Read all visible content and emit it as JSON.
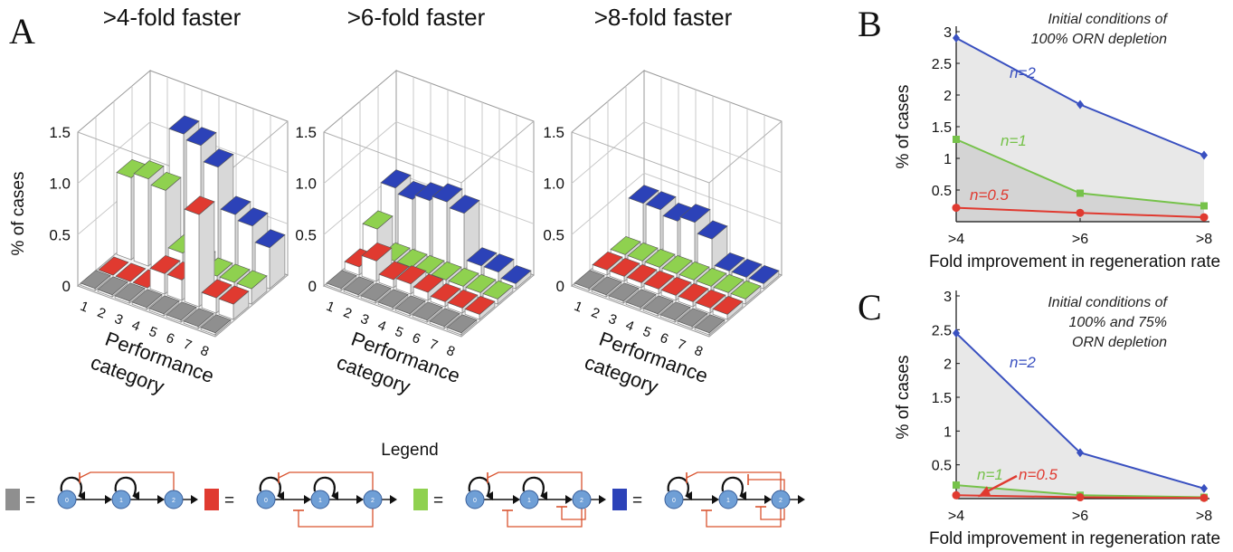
{
  "panels": {
    "A": "A",
    "B": "B",
    "C": "C"
  },
  "colors": {
    "gray": "#8f8f8f",
    "red": "#e03a30",
    "green": "#8fd14f",
    "blue": "#2c42b8",
    "line_blue": "#3950c0",
    "line_green": "#76c24a",
    "line_red": "#e03a30",
    "node": "#6f9fd6",
    "arrow_red": "#d9532f"
  },
  "panel_a": {
    "ylabel": "% of cases",
    "yticks": [
      "0",
      "0.5",
      "1.0",
      "1.5"
    ],
    "xlabel_line1": "Performance",
    "xlabel_line2": "category",
    "titles": [
      ">4-fold faster",
      ">6-fold faster",
      ">8-fold faster"
    ]
  },
  "legend": {
    "title": "Legend",
    "equals": "=",
    "node_labels": [
      "0",
      "1",
      "2"
    ]
  },
  "chart_data": [
    {
      "type": "bar3d",
      "title": ">4-fold faster",
      "xlabel": "Performance category",
      "ylabel": "% of cases",
      "zlim": [
        0,
        1.5
      ],
      "categories": [
        "1",
        "2",
        "3",
        "4",
        "5",
        "6",
        "7",
        "8"
      ],
      "series": [
        {
          "color": "gray",
          "values": [
            0.02,
            0.02,
            0.02,
            0.02,
            0.02,
            0.02,
            0.02,
            0.02
          ]
        },
        {
          "color": "red",
          "values": [
            0,
            0,
            0,
            0.2,
            0.2,
            0.9,
            0.15,
            0.15
          ]
        },
        {
          "color": "green",
          "values": [
            0.8,
            0.85,
            0.8,
            0.25,
            0.2,
            0.15,
            0.15,
            0.15
          ]
        },
        {
          "color": "blue",
          "values": [
            0.3,
            0.25,
            1.2,
            1.15,
            1.0,
            0.6,
            0.55,
            0.4
          ]
        }
      ]
    },
    {
      "type": "bar3d",
      "title": ">6-fold faster",
      "xlabel": "Performance category",
      "ylabel": "% of cases",
      "zlim": [
        0,
        1.5
      ],
      "categories": [
        "1",
        "2",
        "3",
        "4",
        "5",
        "6",
        "7",
        "8"
      ],
      "series": [
        {
          "color": "gray",
          "values": [
            0.02,
            0.02,
            0.02,
            0.02,
            0.02,
            0.02,
            0.02,
            0.02
          ]
        },
        {
          "color": "red",
          "values": [
            0.08,
            0.2,
            0.08,
            0.1,
            0.08,
            0.05,
            0.05,
            0.05
          ]
        },
        {
          "color": "green",
          "values": [
            0.3,
            0.05,
            0.05,
            0.05,
            0.05,
            0.05,
            0.05,
            0.05
          ]
        },
        {
          "color": "blue",
          "values": [
            0.55,
            0.5,
            0.55,
            0.6,
            0.55,
            0.1,
            0.1,
            0.05
          ]
        }
      ]
    },
    {
      "type": "bar3d",
      "title": ">8-fold faster",
      "xlabel": "Performance category",
      "ylabel": "% of cases",
      "zlim": [
        0,
        1.5
      ],
      "categories": [
        "1",
        "2",
        "3",
        "4",
        "5",
        "6",
        "7",
        "8"
      ],
      "series": [
        {
          "color": "gray",
          "values": [
            0.02,
            0.02,
            0.02,
            0.02,
            0.02,
            0.02,
            0.02,
            0.02
          ]
        },
        {
          "color": "red",
          "values": [
            0.05,
            0.05,
            0.05,
            0.05,
            0.05,
            0.05,
            0.05,
            0.05
          ]
        },
        {
          "color": "green",
          "values": [
            0.05,
            0.05,
            0.05,
            0.05,
            0.05,
            0.05,
            0.05,
            0.05
          ]
        },
        {
          "color": "blue",
          "values": [
            0.4,
            0.4,
            0.35,
            0.4,
            0.3,
            0.05,
            0.05,
            0.05
          ]
        }
      ]
    },
    {
      "type": "line",
      "annotation": [
        "Initial conditions of",
        "100% ORN depletion"
      ],
      "xlabel": "Fold improvement in regeneration rate",
      "ylabel": "% of cases",
      "categories": [
        ">4",
        ">6",
        ">8"
      ],
      "ylim": [
        0,
        3
      ],
      "yticks": [
        "0.5",
        "1",
        "1.5",
        "2",
        "2.5",
        "3"
      ],
      "series": [
        {
          "name": "n=2",
          "color": "line_blue",
          "values": [
            2.9,
            1.85,
            1.05
          ]
        },
        {
          "name": "n=1",
          "color": "line_green",
          "values": [
            1.3,
            0.45,
            0.25
          ]
        },
        {
          "name": "n=0.5",
          "color": "line_red",
          "values": [
            0.22,
            0.14,
            0.07
          ]
        }
      ]
    },
    {
      "type": "line",
      "annotation": [
        "Initial conditions of",
        "100% and 75%",
        "ORN depletion"
      ],
      "xlabel": "Fold improvement in regeneration rate",
      "ylabel": "% of cases",
      "categories": [
        ">4",
        ">6",
        ">8"
      ],
      "ylim": [
        0,
        3
      ],
      "yticks": [
        "0.5",
        "1",
        "1.5",
        "2",
        "2.5",
        "3"
      ],
      "series": [
        {
          "name": "n=2",
          "color": "line_blue",
          "values": [
            2.45,
            0.68,
            0.15
          ]
        },
        {
          "name": "n=1",
          "color": "line_green",
          "values": [
            0.2,
            0.05,
            0.02
          ]
        },
        {
          "name": "n=0.5",
          "color": "line_red",
          "values": [
            0.05,
            0.02,
            0.01
          ]
        }
      ]
    }
  ]
}
